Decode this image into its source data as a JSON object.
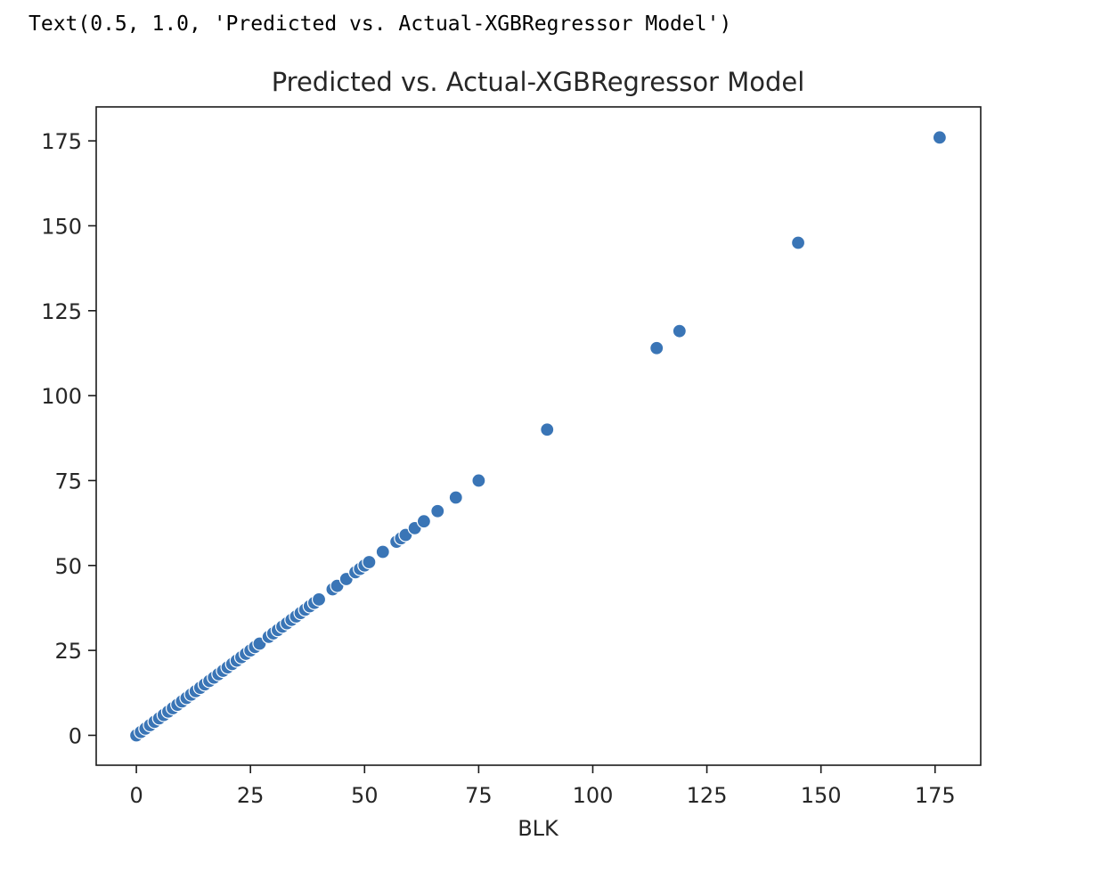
{
  "output_line": "Text(0.5, 1.0, 'Predicted vs. Actual-XGBRegressor Model')",
  "chart_data": {
    "type": "scatter",
    "title": "Predicted vs. Actual-XGBRegressor Model",
    "xlabel": "BLK",
    "ylabel": "",
    "xlim": [
      -8.8,
      185
    ],
    "ylim": [
      -8.8,
      185
    ],
    "xticks": [
      0,
      25,
      50,
      75,
      100,
      125,
      150,
      175
    ],
    "yticks": [
      0,
      25,
      50,
      75,
      100,
      125,
      150,
      175
    ],
    "grid": false,
    "marker_color": "#3a75b6",
    "marker_edge_color": "#ffffff",
    "points": [
      [
        0,
        0
      ],
      [
        1,
        1
      ],
      [
        2,
        2
      ],
      [
        3,
        3
      ],
      [
        4,
        4
      ],
      [
        5,
        5
      ],
      [
        6,
        6
      ],
      [
        7,
        7
      ],
      [
        8,
        8
      ],
      [
        9,
        9
      ],
      [
        10,
        10
      ],
      [
        11,
        11
      ],
      [
        12,
        12
      ],
      [
        13,
        13
      ],
      [
        14,
        14
      ],
      [
        15,
        15
      ],
      [
        16,
        16
      ],
      [
        17,
        17
      ],
      [
        18,
        18
      ],
      [
        19,
        19
      ],
      [
        20,
        20
      ],
      [
        21,
        21
      ],
      [
        22,
        22
      ],
      [
        23,
        23
      ],
      [
        24,
        24
      ],
      [
        25,
        25
      ],
      [
        26,
        26
      ],
      [
        27,
        27
      ],
      [
        29,
        29
      ],
      [
        30,
        30
      ],
      [
        31,
        31
      ],
      [
        32,
        32
      ],
      [
        33,
        33
      ],
      [
        34,
        34
      ],
      [
        35,
        35
      ],
      [
        36,
        36
      ],
      [
        37,
        37
      ],
      [
        38,
        38
      ],
      [
        39,
        39
      ],
      [
        40,
        40
      ],
      [
        43,
        43
      ],
      [
        44,
        44
      ],
      [
        46,
        46
      ],
      [
        48,
        48
      ],
      [
        49,
        49
      ],
      [
        50,
        50
      ],
      [
        51,
        51
      ],
      [
        54,
        54
      ],
      [
        57,
        57
      ],
      [
        58,
        58
      ],
      [
        59,
        59
      ],
      [
        61,
        61
      ],
      [
        63,
        63
      ],
      [
        66,
        66
      ],
      [
        70,
        70
      ],
      [
        75,
        75
      ],
      [
        90,
        90
      ],
      [
        114,
        114
      ],
      [
        119,
        119
      ],
      [
        145,
        145
      ],
      [
        176,
        176
      ]
    ]
  }
}
